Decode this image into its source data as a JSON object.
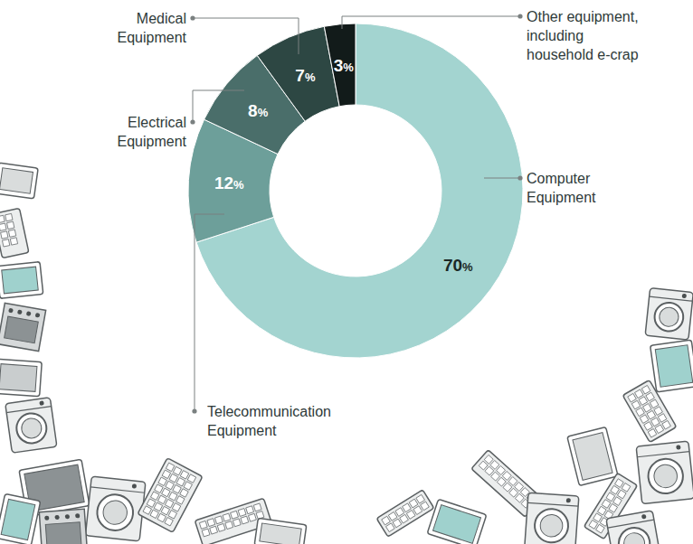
{
  "chart_data": {
    "type": "donut",
    "categories": [
      "Computer Equipment",
      "Telecommunication Equipment",
      "Electrical Equipment",
      "Medical Equipment",
      "Other equipment, including household e-crap"
    ],
    "values": [
      70,
      12,
      8,
      7,
      3
    ],
    "value_labels": [
      "70%",
      "12%",
      "8%",
      "7%",
      "3%"
    ],
    "colors": [
      "#a3d4d0",
      "#6d9f9a",
      "#4a6e6a",
      "#2d4743",
      "#121b1a"
    ],
    "data_labels": true
  }
}
